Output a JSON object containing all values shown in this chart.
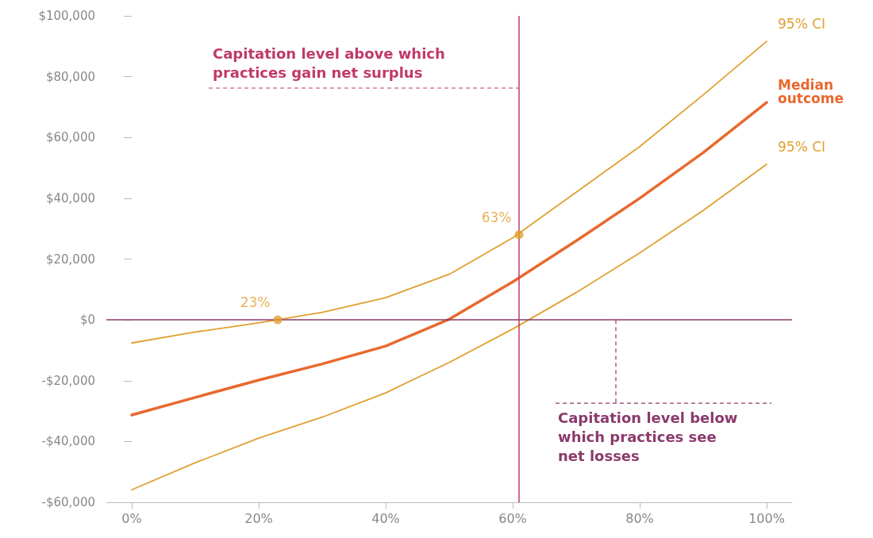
{
  "chart_data": {
    "type": "line",
    "x": [
      0,
      10,
      20,
      30,
      40,
      50,
      60,
      70,
      80,
      90,
      100
    ],
    "series": [
      {
        "name": "95% CI",
        "color": "#e0a030",
        "values": [
          -7600,
          -4000,
          -1000,
          2500,
          7300,
          15000,
          27000,
          42000,
          57000,
          74000,
          91600
        ]
      },
      {
        "name": "Median outcome",
        "color": "#e8692e",
        "values": [
          -31300,
          -25500,
          -19800,
          -14500,
          -8600,
          200,
          12500,
          26000,
          40000,
          55000,
          71500
        ]
      },
      {
        "name": "95% CI",
        "color": "#e0a030",
        "values": [
          -55900,
          -47000,
          -38900,
          -32000,
          -24000,
          -14000,
          -3000,
          9000,
          22000,
          36000,
          51200
        ]
      }
    ],
    "annotations": [
      {
        "text": "23%",
        "x": 23,
        "y": 0
      },
      {
        "text": "63%",
        "x": 61,
        "y": 28000
      }
    ],
    "xlim": [
      -4,
      104
    ],
    "xticks": [
      {
        "value": 0,
        "label": "0%"
      },
      {
        "value": 20,
        "label": "20%"
      },
      {
        "value": 40,
        "label": "40%"
      },
      {
        "value": 60,
        "label": "60%"
      },
      {
        "value": 80,
        "label": "80%"
      },
      {
        "value": 100,
        "label": "100%"
      }
    ],
    "ylim": [
      -60000,
      100000
    ],
    "yticks": [
      {
        "value": -60000,
        "label": "-$60,000"
      },
      {
        "value": -40000,
        "label": "-$40,000"
      },
      {
        "value": -20000,
        "label": "-$20,000"
      },
      {
        "value": 0,
        "label": "$0"
      },
      {
        "value": 20000,
        "label": "$20,000"
      },
      {
        "value": 40000,
        "label": "$40,000"
      },
      {
        "value": 60000,
        "label": "$60,000"
      },
      {
        "value": 80000,
        "label": "$80,000"
      },
      {
        "value": 100000,
        "label": "$100,000"
      }
    ],
    "ref_lines": [
      {
        "axis": "x",
        "value": 61,
        "label": "Capitation level above which\npractices gain net surplus",
        "color": "#c0396b"
      },
      {
        "axis": "y",
        "value": 0,
        "label": "Capitation level below\nwhich practices see\nnet losses",
        "color": "#8b3a6b"
      }
    ],
    "grid": false,
    "legend": false,
    "marker": "none",
    "line_style": "solid"
  }
}
